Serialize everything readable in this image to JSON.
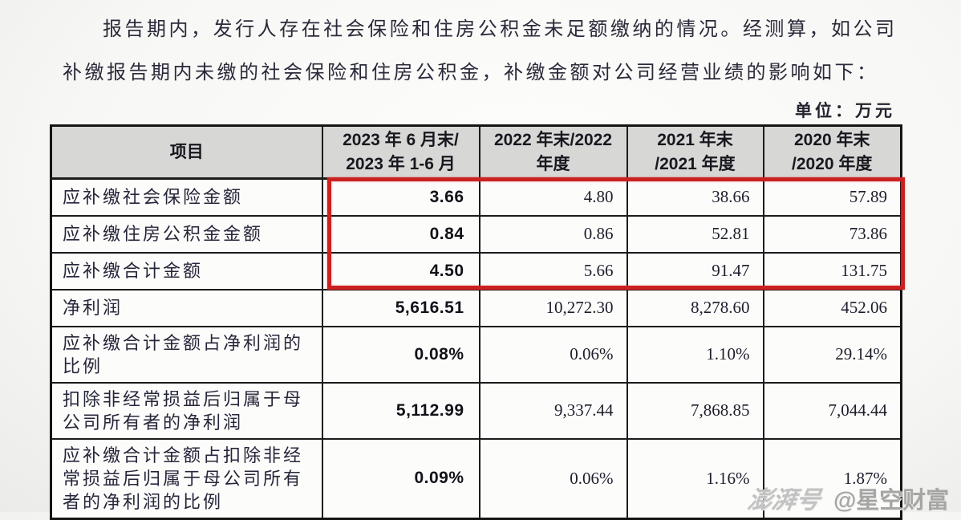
{
  "page": {
    "intro_line1": "报告期内，发行人存在社会保险和住房公积金未足额缴纳的情况。经测算，如公司",
    "intro_line2": "补缴报告期内未缴的社会保险和住房公积金，补缴金额对公司经营业绩的影响如下：",
    "unit_label": "单位：万元",
    "watermark_brand": "澎湃号",
    "watermark_account": "@星空财富",
    "highlight_color": "#cc2121"
  },
  "table": {
    "columns": [
      {
        "line1": "项目",
        "line2": ""
      },
      {
        "line1": "2023 年 6 月末/",
        "line2": "2023 年 1-6 月"
      },
      {
        "line1": "2022 年末/2022",
        "line2": "年度"
      },
      {
        "line1": "2021 年末",
        "line2": "/2021 年度"
      },
      {
        "line1": "2020 年末",
        "line2": "/2020 年度"
      }
    ],
    "rows": [
      {
        "label": "应补缴社会保险金额",
        "values": [
          "3.66",
          "4.80",
          "38.66",
          "57.89"
        ],
        "highlighted": true
      },
      {
        "label": "应补缴住房公积金金额",
        "values": [
          "0.84",
          "0.86",
          "52.81",
          "73.86"
        ],
        "highlighted": true
      },
      {
        "label": "应补缴合计金额",
        "values": [
          "4.50",
          "5.66",
          "91.47",
          "131.75"
        ],
        "highlighted": true
      },
      {
        "label": "净利润",
        "values": [
          "5,616.51",
          "10,272.30",
          "8,278.60",
          "452.06"
        ],
        "highlighted": false
      },
      {
        "label": "应补缴合计金额占净利润的比例",
        "values": [
          "0.08%",
          "0.06%",
          "1.10%",
          "29.14%"
        ],
        "highlighted": false
      },
      {
        "label": "扣除非经常损益后归属于母公司所有者的净利润",
        "values": [
          "5,112.99",
          "9,337.44",
          "7,868.85",
          "7,044.44"
        ],
        "highlighted": false
      },
      {
        "label": "应补缴合计金额占扣除非经常损益后归属于母公司所有者的净利润的比例",
        "values": [
          "0.09%",
          "0.06%",
          "1.16%",
          "1.87%"
        ],
        "highlighted": false
      }
    ]
  }
}
